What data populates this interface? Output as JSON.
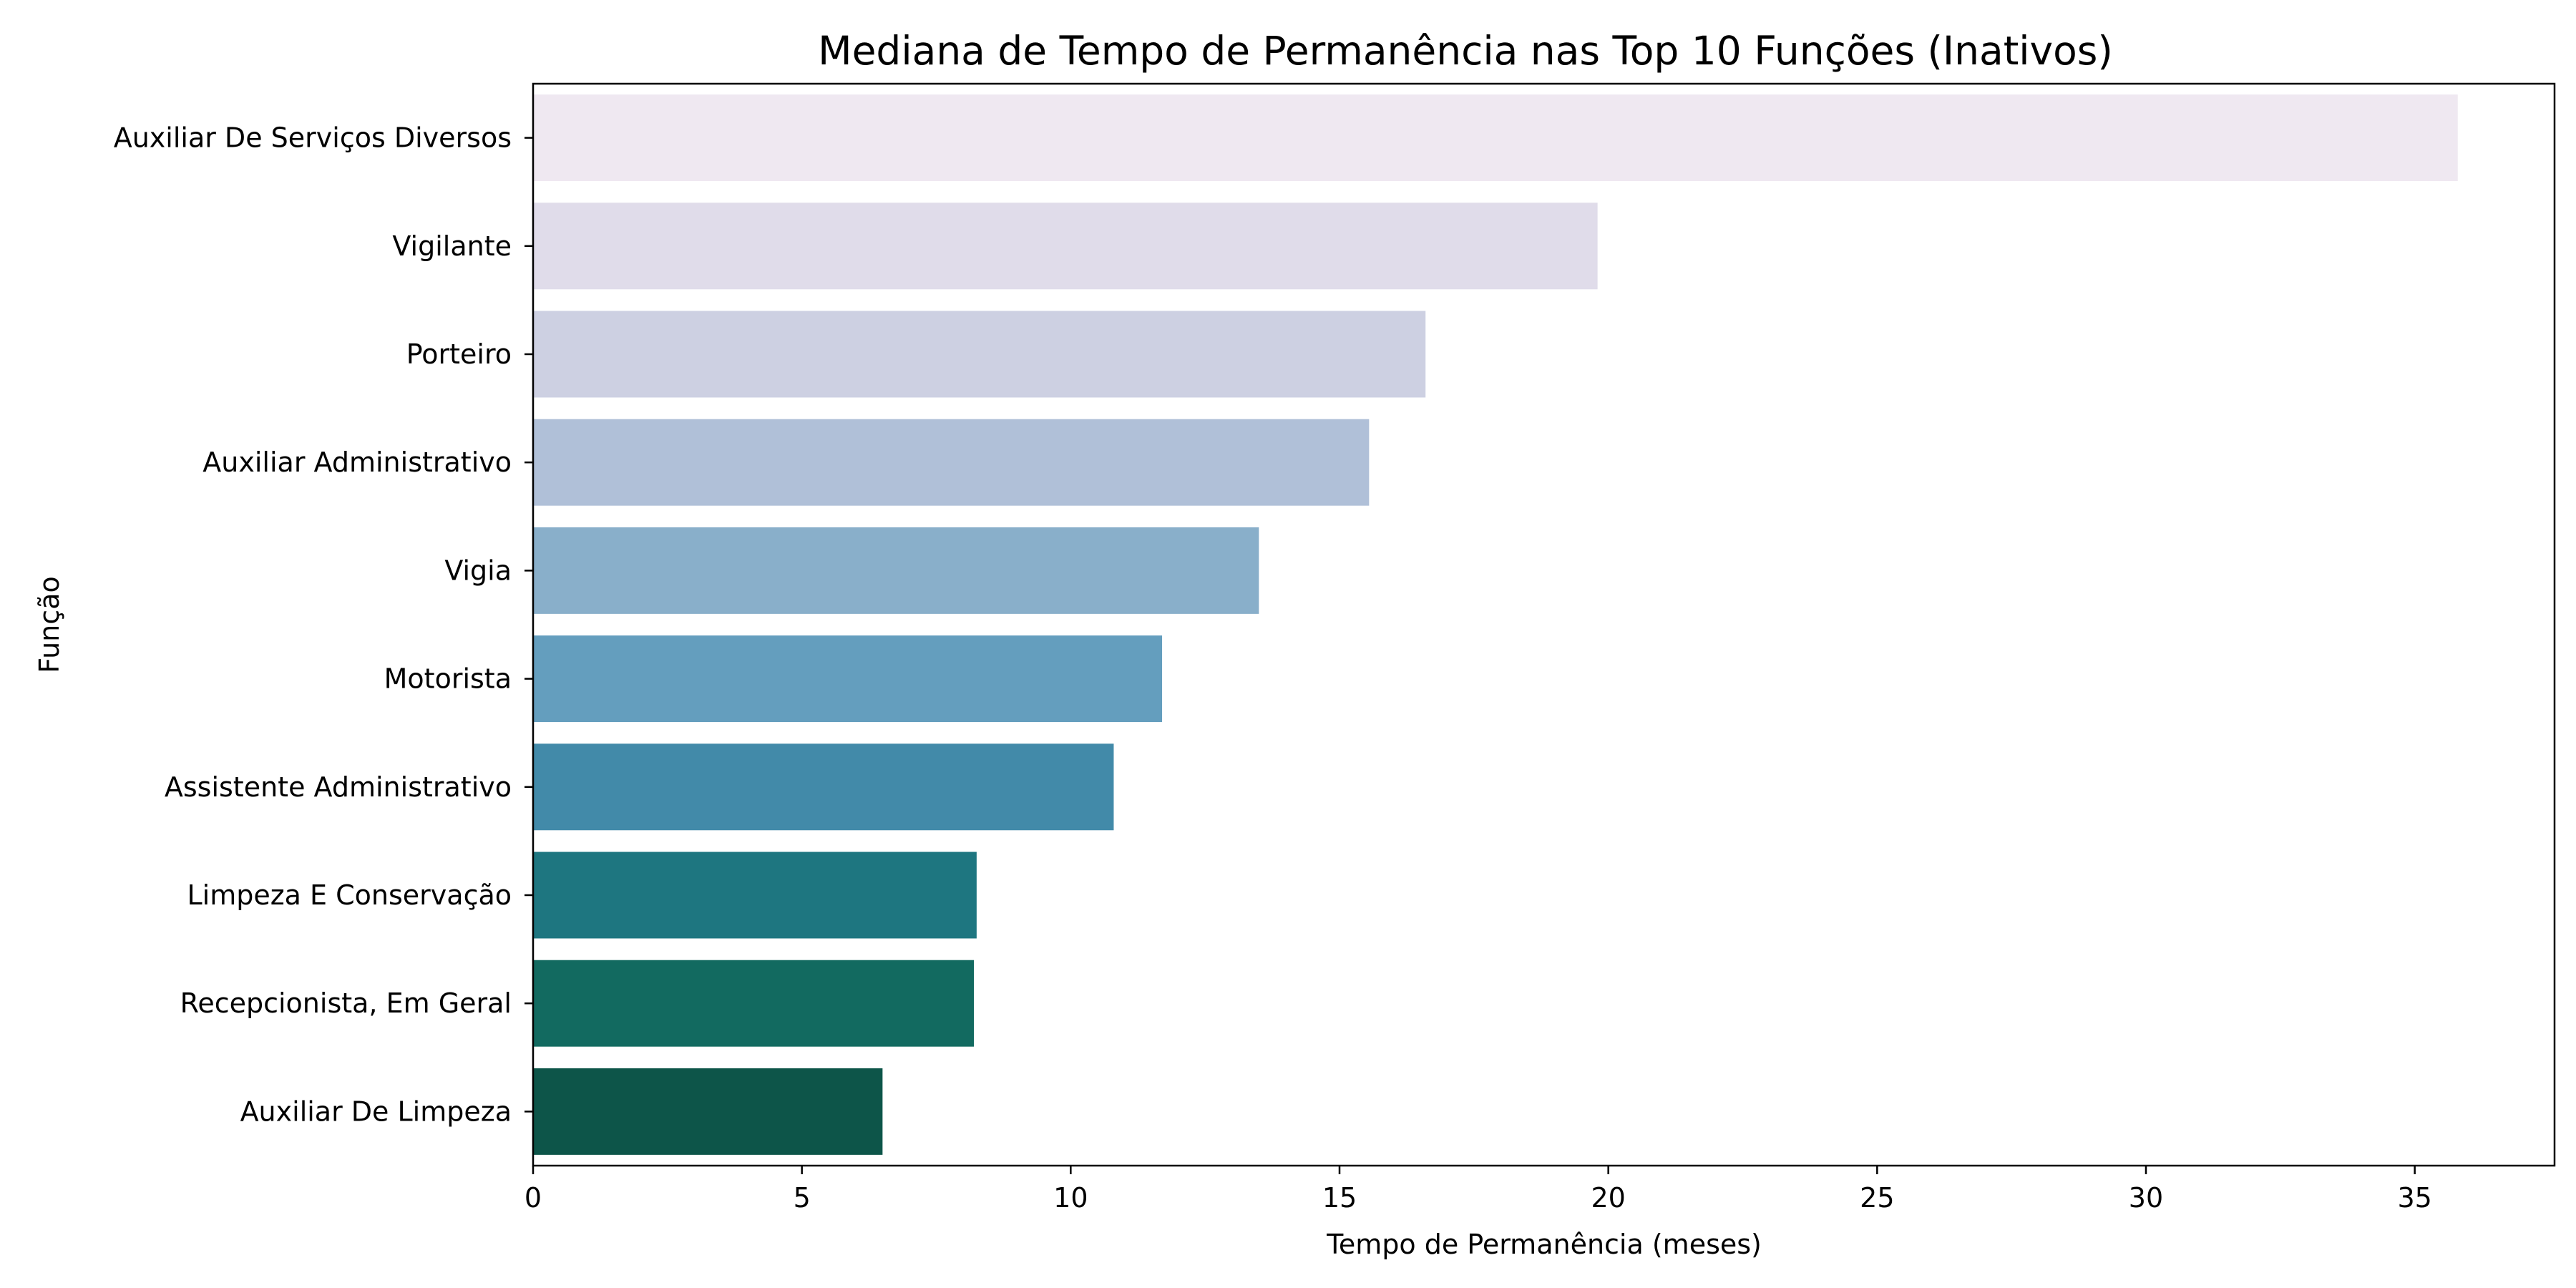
{
  "chart_data": {
    "type": "bar",
    "orientation": "horizontal",
    "title": "Mediana de Tempo de Permanência nas Top 10 Funções (Inativos)",
    "xlabel": "Tempo de Permanência (meses)",
    "ylabel": "Função",
    "xlim": [
      0,
      37.6
    ],
    "xticks": [
      0,
      5,
      10,
      15,
      20,
      25,
      30,
      35
    ],
    "grid": false,
    "legend": "none",
    "categories": [
      "Auxiliar De Serviços Diversos",
      "Vigilante",
      "Porteiro",
      "Auxiliar Administrativo",
      "Vigia",
      "Motorista",
      "Assistente Administrativo",
      "Limpeza E Conservação",
      "Recepcionista, Em Geral",
      "Auxiliar De Limpeza"
    ],
    "values": [
      35.8,
      19.8,
      16.6,
      15.55,
      13.5,
      11.7,
      10.8,
      8.25,
      8.2,
      6.5
    ],
    "colors": [
      "#efe8f1",
      "#e0dcea",
      "#cdd0e2",
      "#b0c0d8",
      "#89afca",
      "#649ebe",
      "#428aa9",
      "#1e7680",
      "#126a60",
      "#0d5549"
    ]
  }
}
